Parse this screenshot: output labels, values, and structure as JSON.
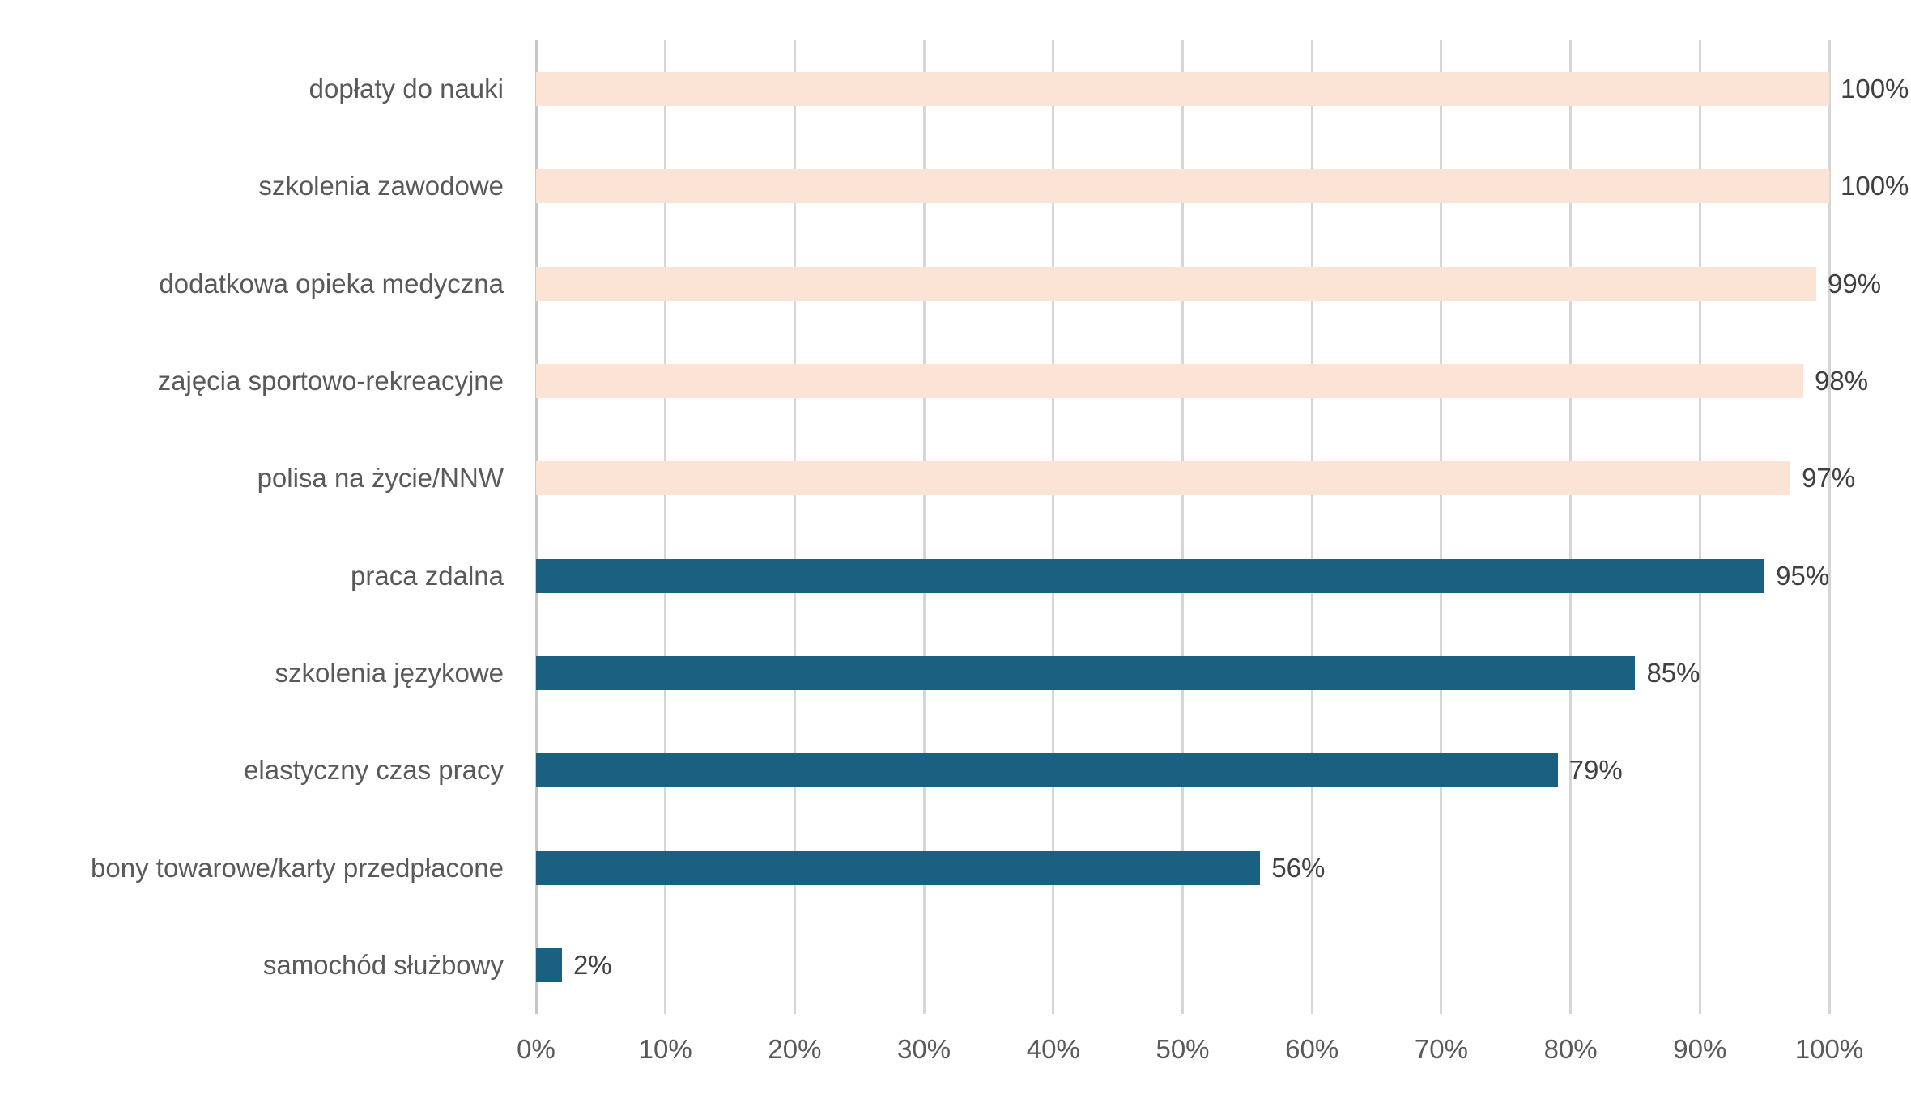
{
  "chart_data": {
    "type": "bar",
    "orientation": "horizontal",
    "title": "",
    "xlabel": "",
    "ylabel": "",
    "categories": [
      "dopłaty do nauki",
      "szkolenia zawodowe",
      "dodatkowa opieka medyczna",
      "zajęcia sportowo-rekreacyjne",
      "polisa na życie/NNW",
      "praca zdalna",
      "szkolenia językowe",
      "elastyczny czas pracy",
      "bony towarowe/karty przedpłacone",
      "samochód służbowy"
    ],
    "values": [
      100,
      100,
      99,
      98,
      97,
      95,
      85,
      79,
      56,
      2
    ],
    "value_labels": [
      "100%",
      "100%",
      "99%",
      "98%",
      "97%",
      "95%",
      "85%",
      "79%",
      "56%",
      "2%"
    ],
    "bar_groups": [
      "light",
      "light",
      "light",
      "light",
      "light",
      "dark",
      "dark",
      "dark",
      "dark",
      "dark"
    ],
    "palette": {
      "light": "#fbe3d5",
      "dark": "#1a6080"
    },
    "xlim": [
      0,
      100
    ],
    "x_ticks": [
      "0%",
      "10%",
      "20%",
      "30%",
      "40%",
      "50%",
      "60%",
      "70%",
      "80%",
      "90%",
      "100%"
    ],
    "grid": true,
    "legend": false
  },
  "colors": {
    "background": "#ffffff",
    "gridline": "#d6d6d6",
    "axis_line": "#c7c7c7",
    "category_label": "#595959",
    "value_label": "#404040",
    "tick_label": "#595959"
  }
}
